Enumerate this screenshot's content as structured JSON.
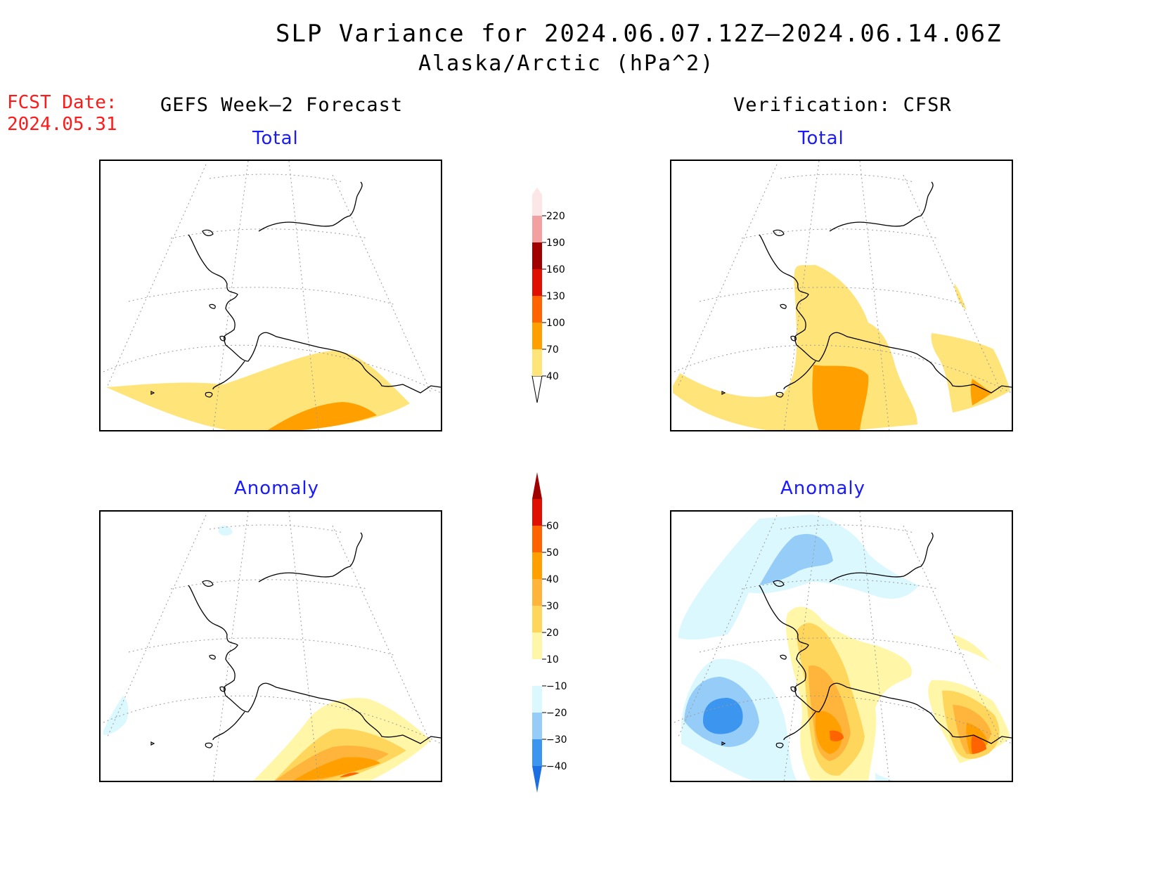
{
  "title": "SLP Variance for 2024.06.07.12Z–2024.06.14.06Z",
  "subtitle": "Alaska/Arctic (hPa^2)",
  "forecast_date": {
    "label": "FCST Date:",
    "value": "2024.05.31"
  },
  "columns": {
    "left": "GEFS Week–2 Forecast",
    "right": "Verification: CFSR"
  },
  "panels": {
    "gefs_total": {
      "label": "Total"
    },
    "cfsr_total": {
      "label": "Total"
    },
    "gefs_anomaly": {
      "label": "Anomaly"
    },
    "cfsr_anomaly": {
      "label": "Anomaly"
    }
  },
  "colorbars": {
    "total": {
      "ticks": [
        "40",
        "70",
        "100",
        "130",
        "160",
        "190",
        "220"
      ],
      "colors": [
        "#ffe47a",
        "#ffa000",
        "#ff6400",
        "#e01000",
        "#a00000",
        "#f2a0a0",
        "#fde6e6"
      ]
    },
    "anomaly": {
      "ticks": [
        "−40",
        "−30",
        "−20",
        "−10",
        "10",
        "20",
        "30",
        "40",
        "50",
        "60"
      ],
      "colors": [
        "#1b6fe0",
        "#3c96f0",
        "#96cdf8",
        "#dcf8ff",
        "#ffffff",
        "#fff6a8",
        "#ffd65c",
        "#ffb43c",
        "#ffa000",
        "#ff6400",
        "#e01000",
        "#a00000"
      ]
    }
  },
  "map_colors": {
    "total_40": "#ffe47a",
    "total_70": "#ffa000",
    "anom_10": "#fff6a8",
    "anom_20": "#ffd65c",
    "anom_30": "#ffb43c",
    "anom_40": "#ffa000",
    "anom_50": "#ff6400",
    "anom_m10": "#dcf8ff",
    "anom_m20": "#96cdf8",
    "anom_m30": "#3c96f0"
  }
}
